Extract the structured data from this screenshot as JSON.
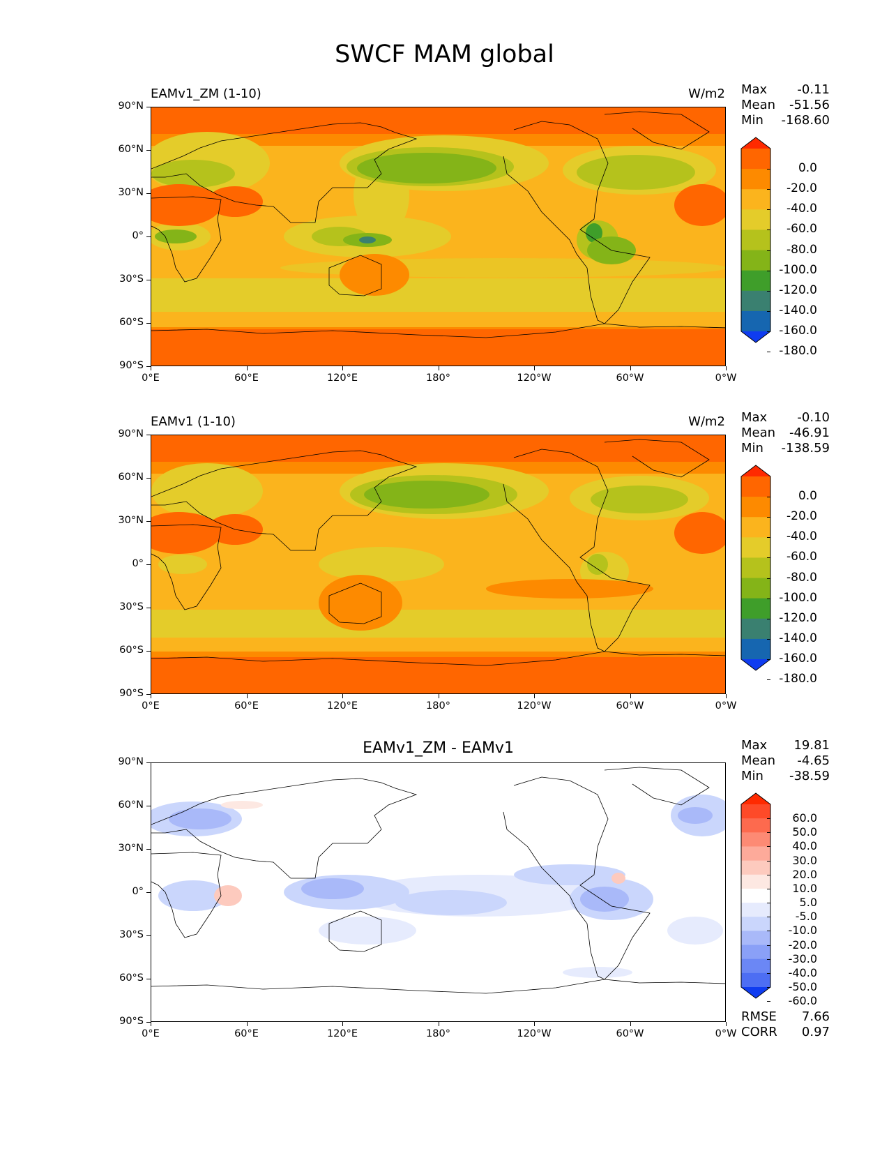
{
  "title": "SWCF MAM global",
  "lat_labels": [
    "90°N",
    "60°N",
    "30°N",
    "0°",
    "30°S",
    "60°S",
    "90°S"
  ],
  "lon_labels": [
    "0°E",
    "60°E",
    "120°E",
    "180°",
    "120°W",
    "60°W",
    "0°W"
  ],
  "colors": {
    "c0": "#ff6600",
    "c1": "#fd8a00",
    "c2": "#fbb41d",
    "c3": "#e4cc2a",
    "c4": "#b5c21c",
    "c5": "#84b418",
    "c6": "#3f9e2a",
    "c7": "#3a8070",
    "c8": "#1666b0",
    "c9": "#0f3cf0",
    "c10": "#ff2a00"
  },
  "panels": [
    {
      "label": "EAMv1_ZM (1-10)",
      "units": "W/m2",
      "stats": {
        "max_label": "Max",
        "max": "-0.11",
        "mean_label": "Mean",
        "mean": "-51.56",
        "min_label": "Min",
        "min": "-168.60"
      },
      "colorbar": {
        "levels": [
          "0.0",
          "-20.0",
          "-40.0",
          "-60.0",
          "-80.0",
          "-100.0",
          "-120.0",
          "-140.0",
          "-160.0",
          "-180.0"
        ],
        "colors": [
          "#ff2a00",
          "#ff6600",
          "#fd8a00",
          "#fbb41d",
          "#e4cc2a",
          "#b5c21c",
          "#84b418",
          "#3f9e2a",
          "#3a8070",
          "#1666b0",
          "#0f3cf0"
        ]
      }
    },
    {
      "label": "EAMv1 (1-10)",
      "units": "W/m2",
      "stats": {
        "max_label": "Max",
        "max": "-0.10",
        "mean_label": "Mean",
        "mean": "-46.91",
        "min_label": "Min",
        "min": "-138.59"
      },
      "colorbar": {
        "levels": [
          "0.0",
          "-20.0",
          "-40.0",
          "-60.0",
          "-80.0",
          "-100.0",
          "-120.0",
          "-140.0",
          "-160.0",
          "-180.0"
        ],
        "colors": [
          "#ff2a00",
          "#ff6600",
          "#fd8a00",
          "#fbb41d",
          "#e4cc2a",
          "#b5c21c",
          "#84b418",
          "#3f9e2a",
          "#3a8070",
          "#1666b0",
          "#0f3cf0"
        ]
      }
    },
    {
      "label": "EAMv1_ZM - EAMv1",
      "stats": {
        "max_label": "Max",
        "max": "19.81",
        "mean_label": "Mean",
        "mean": "-4.65",
        "min_label": "Min",
        "min": "-38.59"
      },
      "colorbar": {
        "levels": [
          "60.0",
          "50.0",
          "40.0",
          "30.0",
          "20.0",
          "10.0",
          "5.0",
          "-5.0",
          "-10.0",
          "-20.0",
          "-30.0",
          "-40.0",
          "-50.0",
          "-60.0"
        ],
        "colors": [
          "#ff2a00",
          "#fe4a28",
          "#fd6a4e",
          "#fd8a74",
          "#fdaa9a",
          "#fdcabe",
          "#fde8e2",
          "#ffffff",
          "#e6ebfd",
          "#cad6fc",
          "#a9b9f9",
          "#8aa0f7",
          "#6b87f5",
          "#4d6ef3",
          "#0f3cf0"
        ]
      },
      "rmse_label": "RMSE",
      "rmse": "7.66",
      "corr_label": "CORR",
      "corr": "0.97"
    }
  ]
}
